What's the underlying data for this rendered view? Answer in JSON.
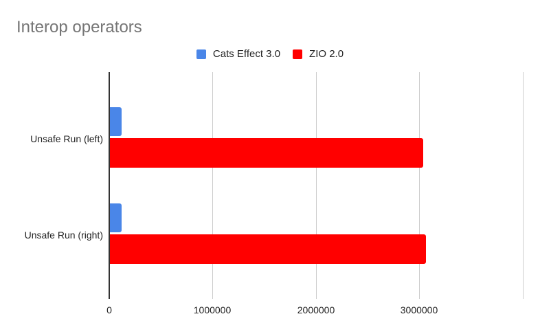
{
  "chart_data": {
    "type": "bar",
    "orientation": "horizontal",
    "title": "Interop operators",
    "categories": [
      "Unsafe Run (left)",
      "Unsafe Run (right)"
    ],
    "series": [
      {
        "name": "Cats Effect 3.0",
        "color": "#4a86e8",
        "values": [
          120000,
          120000
        ]
      },
      {
        "name": "ZIO 2.0",
        "color": "#ff0000",
        "values": [
          3030000,
          3060000
        ]
      }
    ],
    "xlabel": "",
    "ylabel": "",
    "xlim": [
      0,
      4000000
    ],
    "xticks": [
      "0",
      "1000000",
      "2000000",
      "3000000"
    ],
    "grid": true,
    "legend_position": "top"
  },
  "title": "Interop operators",
  "legend": [
    {
      "label": "Cats Effect 3.0",
      "color": "#4a86e8"
    },
    {
      "label": "ZIO 2.0",
      "color": "#ff0000"
    }
  ],
  "xticks": [
    "0",
    "1000000",
    "2000000",
    "3000000"
  ],
  "categories": [
    "Unsafe Run (left)",
    "Unsafe Run (right)"
  ]
}
